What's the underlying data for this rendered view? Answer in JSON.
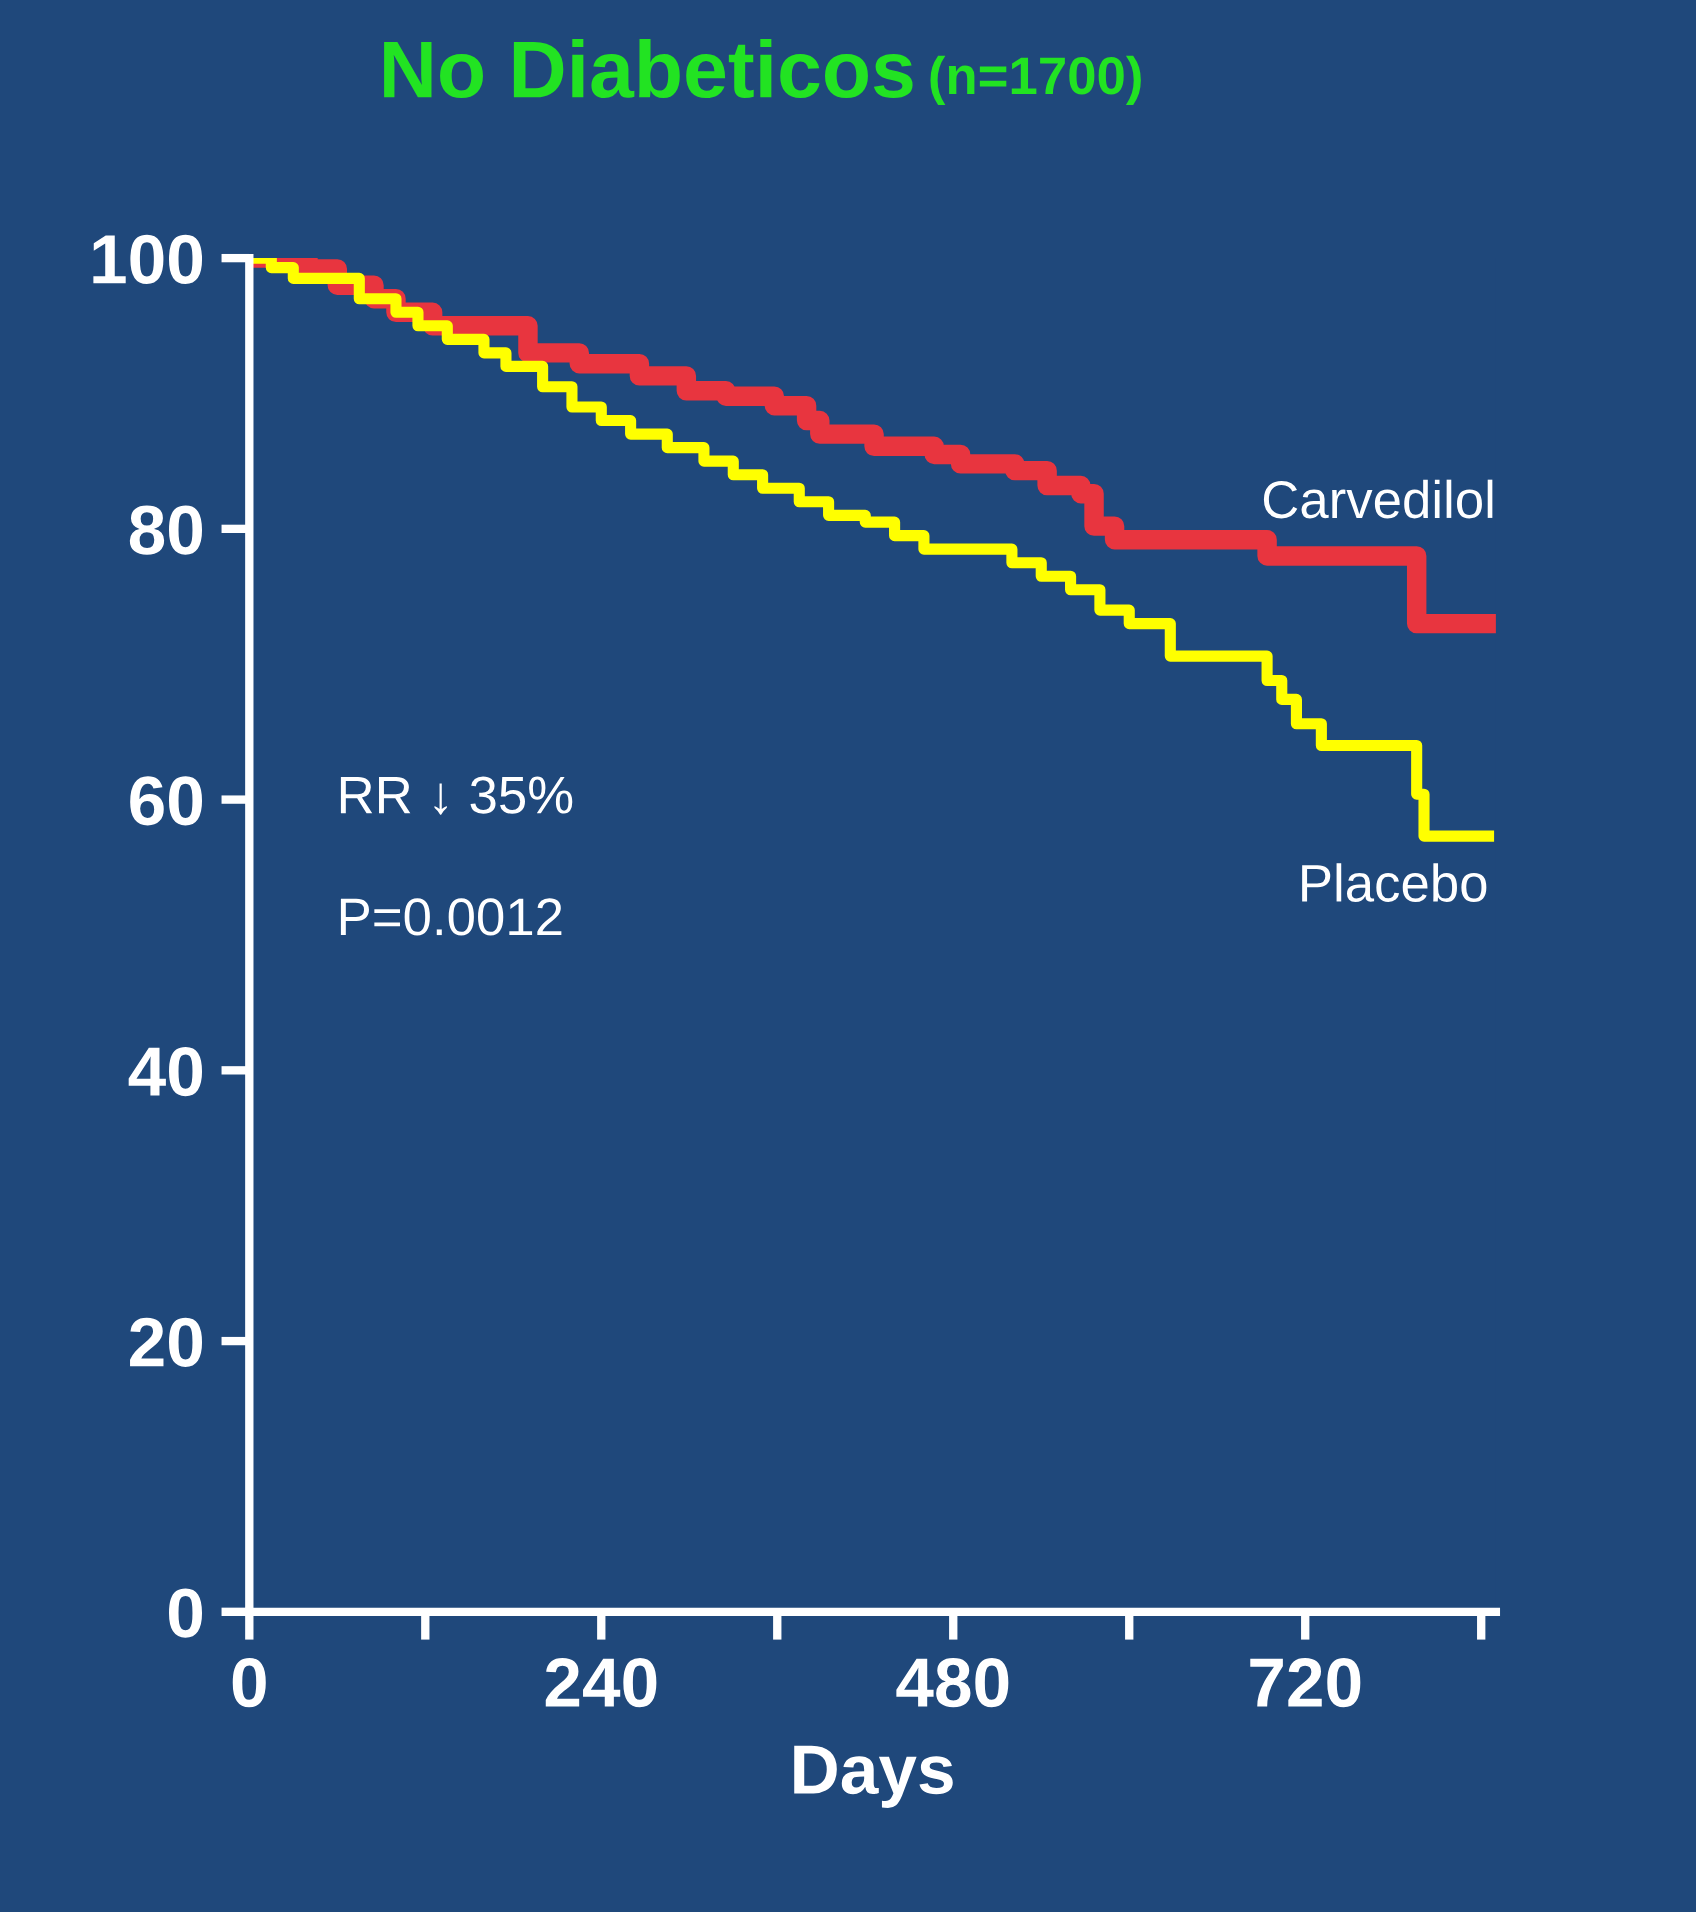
{
  "chart_data": {
    "type": "step",
    "title": "No Diabeticos",
    "subtitle": "(n=1700)",
    "xlabel": "Days",
    "annotations": [
      "RR ↓ 35%",
      "P=0.0012"
    ],
    "xlim": [
      0,
      850
    ],
    "ylim": [
      0,
      100
    ],
    "xticks": [
      0,
      {
        "value": 120,
        "label": null
      },
      240,
      {
        "value": 360,
        "label": null
      },
      480,
      {
        "value": 600,
        "label": null
      },
      720,
      {
        "value": 840,
        "label": null
      }
    ],
    "yticks": [
      0,
      20,
      40,
      60,
      80,
      100
    ],
    "grid": false,
    "legend": false,
    "series": [
      {
        "name": "Carvedilol",
        "color": "#e8353f",
        "x": [
          0,
          40,
          60,
          85,
          100,
          125,
          190,
          225,
          266,
          298,
          325,
          358,
          380,
          389,
          426,
          467,
          485,
          522,
          544,
          567,
          576,
          590,
          694,
          796,
          850
        ],
        "values": [
          100,
          99.2,
          98,
          97,
          96,
          95,
          93,
          92.2,
          91.3,
          90.2,
          89.8,
          89.1,
          88,
          87,
          86.1,
          85.5,
          84.8,
          84.3,
          83.2,
          82.6,
          80.2,
          79.2,
          78,
          73,
          73
        ]
      },
      {
        "name": "Placebo",
        "color": "#ffff00",
        "x": [
          0,
          15,
          30,
          75,
          100,
          115,
          135,
          160,
          175,
          200,
          220,
          240,
          260,
          285,
          310,
          330,
          350,
          375,
          395,
          420,
          440,
          460,
          520,
          540,
          560,
          580,
          600,
          628,
          694,
          704,
          714,
          731,
          796,
          801,
          845
        ],
        "values": [
          100,
          99.3,
          98.5,
          97,
          96,
          95,
          94,
          93,
          92,
          90.5,
          89,
          88,
          87,
          86,
          85,
          84,
          83,
          82,
          81,
          80.5,
          79.5,
          78.5,
          77.5,
          76.5,
          75.5,
          74,
          73,
          70.6,
          68.8,
          67.4,
          65.6,
          64,
          60.4,
          57.3,
          57.3
        ]
      }
    ]
  }
}
